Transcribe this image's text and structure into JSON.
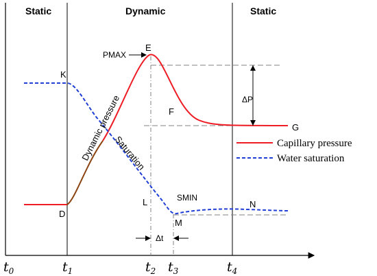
{
  "regions": {
    "static_left": "Static",
    "dynamic": "Dynamic",
    "static_right": "Static"
  },
  "time_ticks": [
    {
      "base": "t",
      "sub": "0"
    },
    {
      "base": "t",
      "sub": "1"
    },
    {
      "base": "t",
      "sub": "2"
    },
    {
      "base": "t",
      "sub": "3"
    },
    {
      "base": "t",
      "sub": "4"
    }
  ],
  "points": {
    "K": "K",
    "D": "D",
    "E": "E",
    "F": "F",
    "G": "G",
    "L": "L",
    "M": "M",
    "N": "N"
  },
  "annotations": {
    "pmax": "PMAX",
    "smin": "SMIN",
    "delta_p": "ΔP",
    "delta_t": "Δt",
    "dynamic_pressure": "Dynamic pressure",
    "saturation": "Saturation"
  },
  "legend": {
    "capillary": "Capillary pressure",
    "water": "Water saturation"
  },
  "colors": {
    "pressure": "#ee1c24",
    "pressure_rise": "#8b4513",
    "saturation": "#1f3fd6",
    "guide": "#808080"
  }
}
